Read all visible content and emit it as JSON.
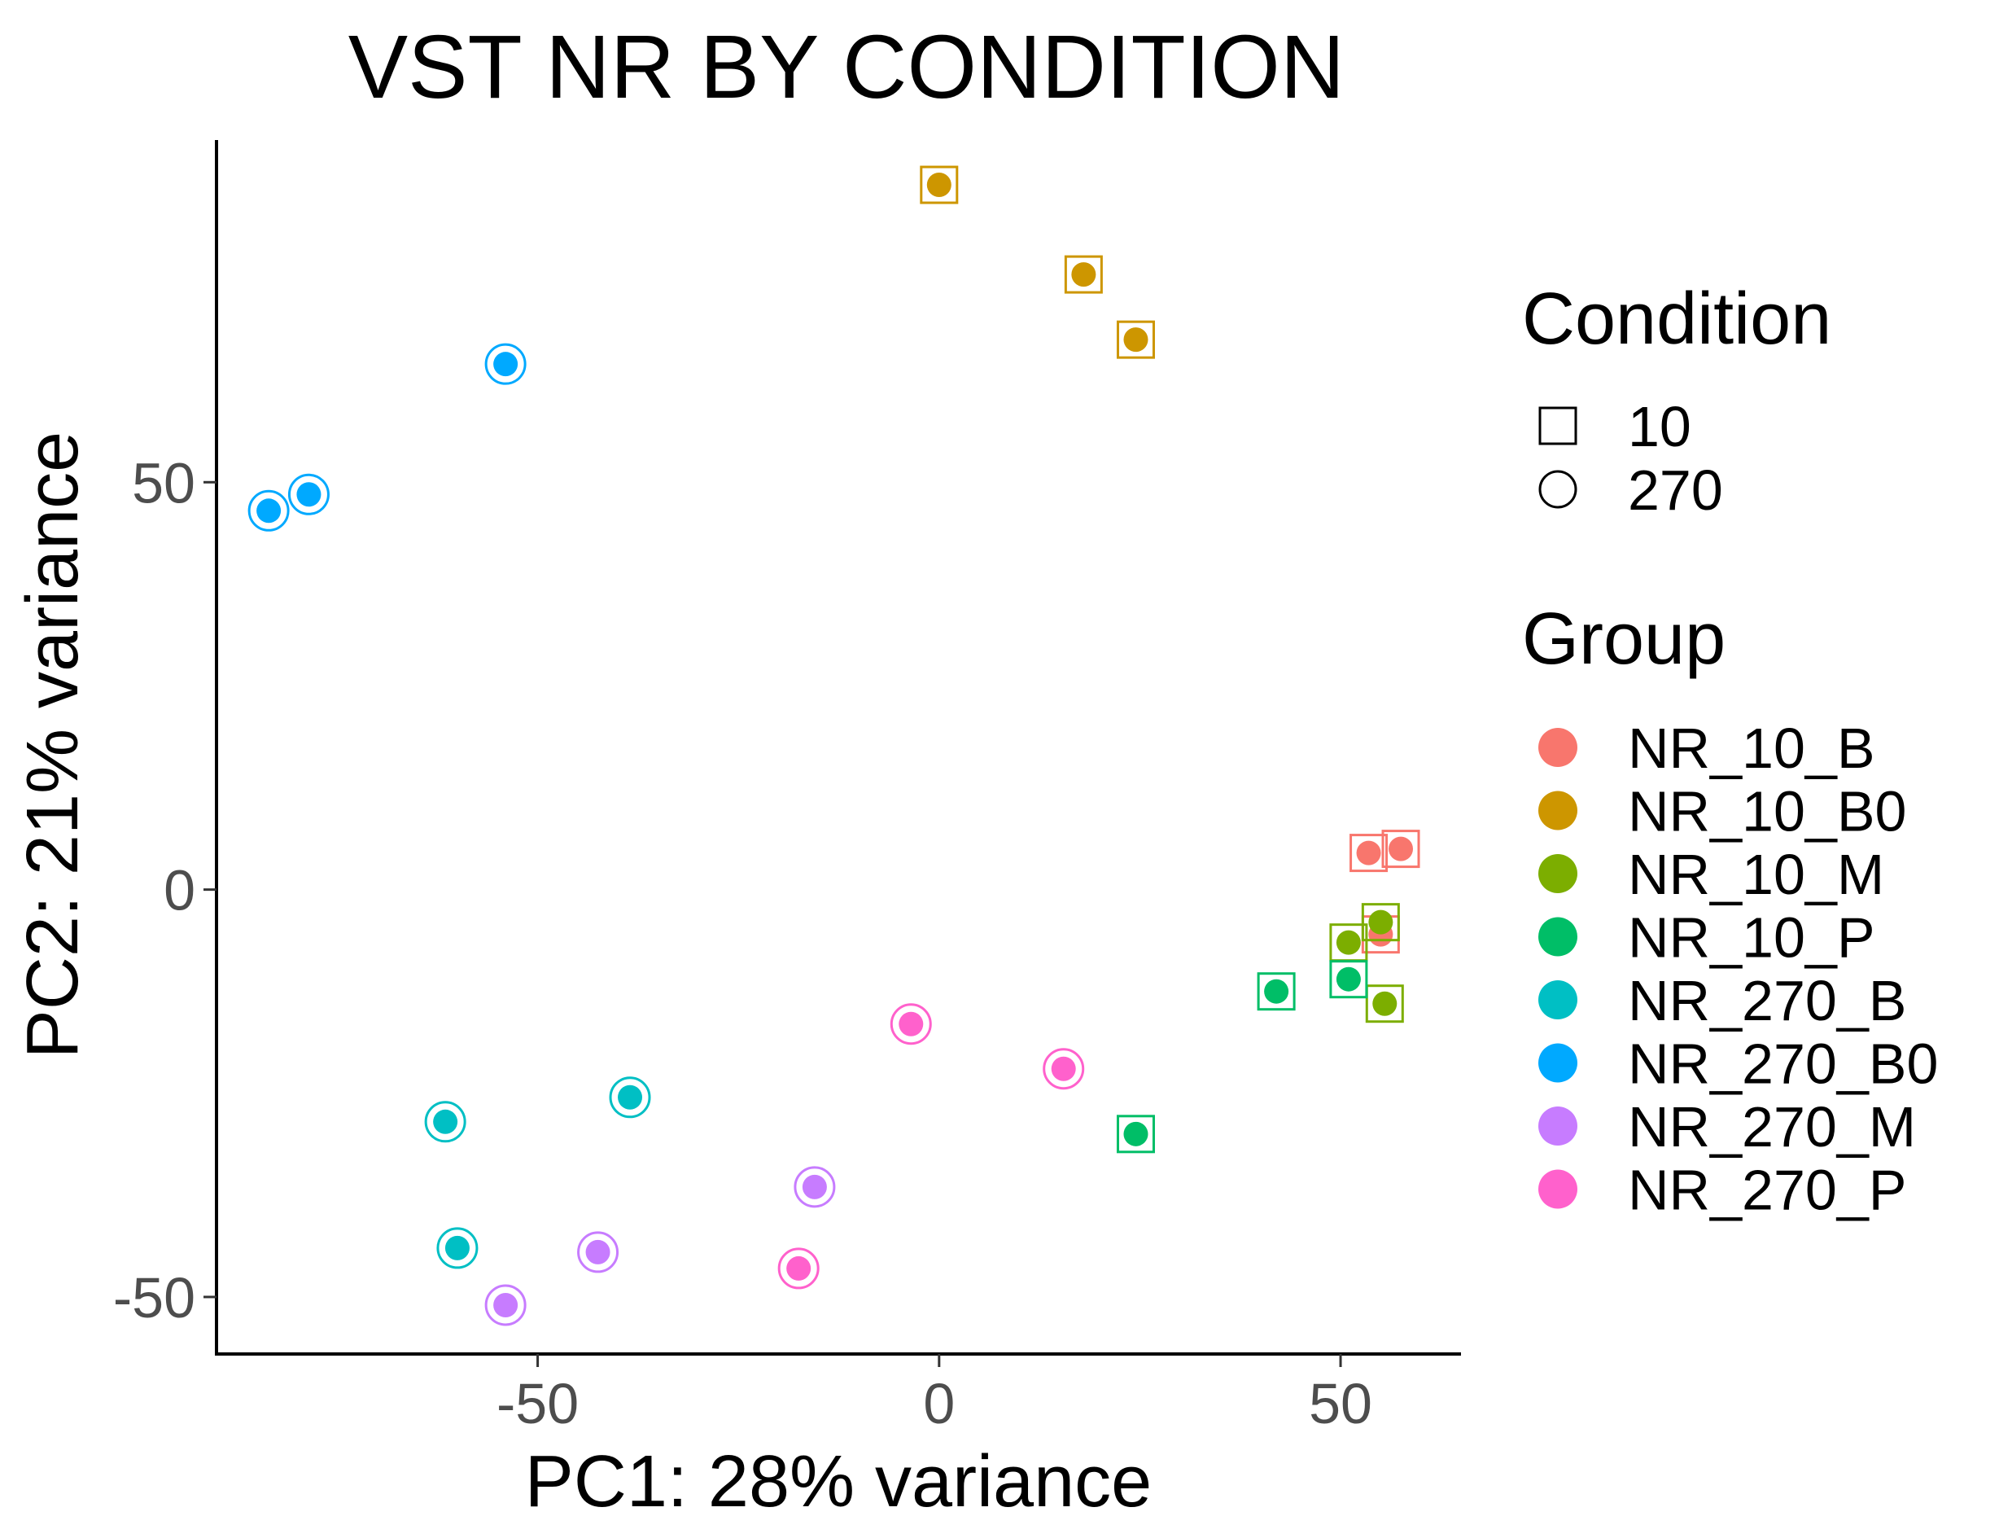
{
  "chart_data": {
    "type": "scatter",
    "title": "VST NR BY CONDITION",
    "xlabel": "PC1: 28% variance",
    "ylabel": "PC2: 21% variance",
    "xlim": [
      -90,
      65
    ],
    "ylim": [
      -57,
      92
    ],
    "x_ticks": [
      -50,
      0,
      50
    ],
    "x_tick_labels": [
      "-50",
      "0",
      "50"
    ],
    "y_ticks": [
      -50,
      0,
      50
    ],
    "y_tick_labels": [
      "-50",
      "0",
      "50"
    ],
    "grid": false,
    "legend_placement": "right",
    "shape_legend": {
      "title": "Condition",
      "entries": [
        {
          "label": "10",
          "shape": "square"
        },
        {
          "label": "270",
          "shape": "circle"
        }
      ]
    },
    "color_legend": {
      "title": "Group",
      "entries": [
        {
          "label": "NR_10_B",
          "color": "#F8766D"
        },
        {
          "label": "NR_10_B0",
          "color": "#CD9600"
        },
        {
          "label": "NR_10_M",
          "color": "#7CAE00"
        },
        {
          "label": "NR_10_P",
          "color": "#00BE67"
        },
        {
          "label": "NR_270_B",
          "color": "#00BFC4"
        },
        {
          "label": "NR_270_B0",
          "color": "#00A9FF"
        },
        {
          "label": "NR_270_M",
          "color": "#C77CFF"
        },
        {
          "label": "NR_270_P",
          "color": "#FF61CC"
        }
      ]
    },
    "points": [
      {
        "x": 53.5,
        "y": 4.5,
        "group": "NR_10_B",
        "condition": "10"
      },
      {
        "x": 57.5,
        "y": 5.0,
        "group": "NR_10_B",
        "condition": "10"
      },
      {
        "x": 55.0,
        "y": -5.5,
        "group": "NR_10_B",
        "condition": "10"
      },
      {
        "x": 0.0,
        "y": 86.5,
        "group": "NR_10_B0",
        "condition": "10"
      },
      {
        "x": 18.0,
        "y": 75.5,
        "group": "NR_10_B0",
        "condition": "10"
      },
      {
        "x": 24.5,
        "y": 67.5,
        "group": "NR_10_B0",
        "condition": "10"
      },
      {
        "x": 55.0,
        "y": -4.0,
        "group": "NR_10_M",
        "condition": "10"
      },
      {
        "x": 51.0,
        "y": -6.5,
        "group": "NR_10_M",
        "condition": "10"
      },
      {
        "x": 55.5,
        "y": -14.0,
        "group": "NR_10_M",
        "condition": "10"
      },
      {
        "x": 42.0,
        "y": -12.5,
        "group": "NR_10_P",
        "condition": "10"
      },
      {
        "x": 51.0,
        "y": -11.0,
        "group": "NR_10_P",
        "condition": "10"
      },
      {
        "x": 24.5,
        "y": -30.0,
        "group": "NR_10_P",
        "condition": "10"
      },
      {
        "x": -38.5,
        "y": -25.5,
        "group": "NR_270_B",
        "condition": "270"
      },
      {
        "x": -61.5,
        "y": -28.5,
        "group": "NR_270_B",
        "condition": "270"
      },
      {
        "x": -60.0,
        "y": -44.0,
        "group": "NR_270_B",
        "condition": "270"
      },
      {
        "x": -54.0,
        "y": 64.5,
        "group": "NR_270_B0",
        "condition": "270"
      },
      {
        "x": -78.5,
        "y": 48.5,
        "group": "NR_270_B0",
        "condition": "270"
      },
      {
        "x": -83.5,
        "y": 46.5,
        "group": "NR_270_B0",
        "condition": "270"
      },
      {
        "x": -15.5,
        "y": -36.5,
        "group": "NR_270_M",
        "condition": "270"
      },
      {
        "x": -42.5,
        "y": -44.5,
        "group": "NR_270_M",
        "condition": "270"
      },
      {
        "x": -54.0,
        "y": -51.0,
        "group": "NR_270_M",
        "condition": "270"
      },
      {
        "x": -3.5,
        "y": -16.5,
        "group": "NR_270_P",
        "condition": "270"
      },
      {
        "x": 15.5,
        "y": -22.0,
        "group": "NR_270_P",
        "condition": "270"
      },
      {
        "x": -17.5,
        "y": -46.5,
        "group": "NR_270_P",
        "condition": "270"
      }
    ]
  }
}
